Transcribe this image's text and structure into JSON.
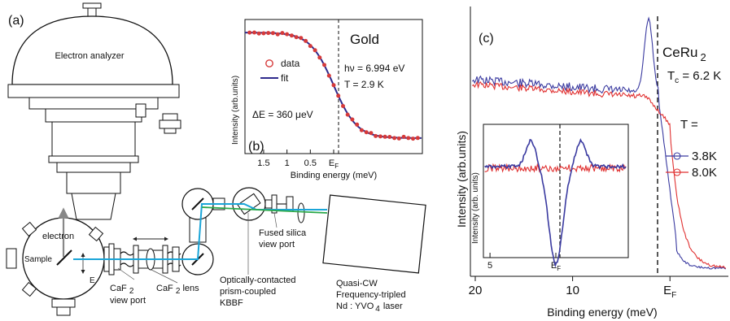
{
  "panel_a": {
    "label": "(a)",
    "analyzer": "Electron analyzer",
    "electron": "electron",
    "sample": "Sample",
    "efield": "E",
    "caf2_port_1": "CaF",
    "caf2_port_sub": "2",
    "caf2_port_2": "view port",
    "caf2_lens_1": "CaF",
    "caf2_lens_sub": "2",
    "caf2_lens_2": "lens",
    "kbbf_1": "Optically-contacted",
    "kbbf_2": "prism-coupled",
    "kbbf_3": "KBBF",
    "fused_1": "Fused silica",
    "fused_2": "view port",
    "laser_1": "Quasi-CW",
    "laser_2": "Frequency-tripled",
    "laser_3": "Nd : YVO",
    "laser_sub": "4",
    "laser_4": "laser"
  },
  "chart_data": [
    {
      "id": "b",
      "type": "scatter",
      "panel_label": "(b)",
      "title": "Gold",
      "xlabel": "Binding energy (meV)",
      "ylabel": "Intensity (arb.units)",
      "x_ticks": [
        "1.5",
        "1",
        "0.5",
        "E"
      ],
      "ef_sub": "F",
      "xlim": [
        1.9,
        -1.9
      ],
      "annotations": [
        "hν = 6.994 eV",
        "T = 2.9 K",
        "ΔE = 360  μeV"
      ],
      "legend": [
        "data",
        "fit"
      ],
      "colors": {
        "data": "#d63a3a",
        "fit": "#2e2a8c",
        "delta": "#5a3d9e"
      },
      "fit": {
        "model": "fermi-dirac",
        "center": 0,
        "kT_meV": 0.25
      },
      "data_x": [
        1.8,
        1.7,
        1.6,
        1.5,
        1.4,
        1.3,
        1.2,
        1.1,
        1.0,
        0.9,
        0.8,
        0.7,
        0.6,
        0.5,
        0.4,
        0.3,
        0.2,
        0.1,
        0.0,
        -0.1,
        -0.2,
        -0.3,
        -0.4,
        -0.5,
        -0.6,
        -0.7,
        -0.8,
        -0.9,
        -1.0,
        -1.1,
        -1.2,
        -1.3,
        -1.4,
        -1.5,
        -1.6,
        -1.7,
        -1.8
      ]
    },
    {
      "id": "c",
      "type": "line",
      "panel_label": "(c)",
      "title": "CeRu",
      "title_sub": "2",
      "tc": "T",
      "tc_sub": "c",
      "tc_value": " = 6.2 K",
      "legend_title": "T =",
      "xlabel": "Binding energy (meV)",
      "ylabel": "Intensity  (arb.units)",
      "x_ticks": [
        "20",
        "10",
        "E"
      ],
      "ef_sub": "F",
      "xlim": [
        20.5,
        -6
      ],
      "series": [
        {
          "name": "3.8K",
          "color": "#3a3aa0"
        },
        {
          "name": "8.0K",
          "color": "#e03030"
        }
      ]
    },
    {
      "id": "c-inset",
      "type": "line",
      "ylabel": "Intensity  (arb. units)",
      "x_ticks": [
        "5",
        "E"
      ],
      "ef_sub": "F",
      "xlim": [
        5.5,
        -5.5
      ],
      "series": [
        {
          "name": "3.8K",
          "color": "#3a3aa0"
        },
        {
          "name": "8.0K",
          "color": "#e03030"
        }
      ]
    }
  ]
}
